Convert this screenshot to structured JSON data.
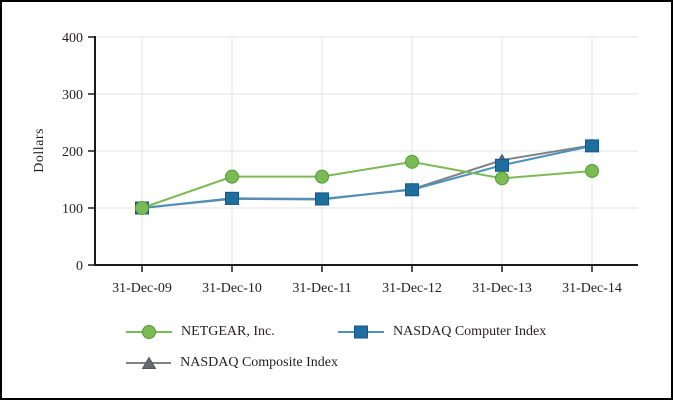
{
  "figure": {
    "background": "#ffffff",
    "border_color": "#000000",
    "text_color": "#231F20",
    "axis_color": "#1A1A1A",
    "gridline_color": "#E3E3E3"
  },
  "chart_data": {
    "type": "line",
    "title": "",
    "xlabel": "",
    "ylabel": "Dollars",
    "categories": [
      "31-Dec-09",
      "31-Dec-10",
      "31-Dec-11",
      "31-Dec-12",
      "31-Dec-13",
      "31-Dec-14"
    ],
    "y_ticks": [
      0,
      100,
      200,
      300,
      400
    ],
    "ylim": [
      0,
      400
    ],
    "grid": "both",
    "legend_position": "bottom-left",
    "series": [
      {
        "name": "NETGEAR, Inc.",
        "marker": "circle",
        "line_color": "#7DBA55",
        "marker_fill": "#7CBB54",
        "marker_stroke": "#549A38",
        "values": [
          100,
          155,
          155,
          181,
          152,
          165
        ]
      },
      {
        "name": "NASDAQ Computer Index",
        "marker": "square",
        "line_color": "#4E91BA",
        "marker_fill": "#1F6E9E",
        "marker_stroke": "#14578A",
        "values": [
          100,
          117,
          116,
          132,
          175,
          209
        ]
      },
      {
        "name": "NASDAQ Composite Index",
        "marker": "triangle",
        "line_color": "#808285",
        "marker_fill": "#696A6E",
        "marker_stroke": "#55575A",
        "values": [
          100,
          116,
          115,
          133,
          184,
          210
        ]
      }
    ]
  }
}
